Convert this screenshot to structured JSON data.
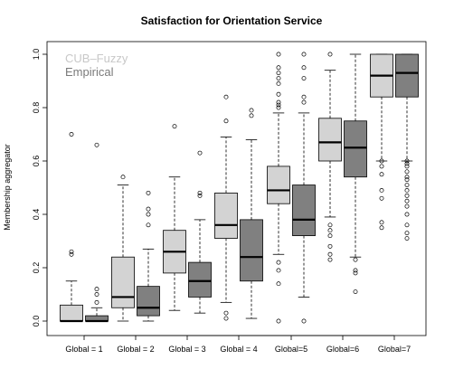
{
  "chart_data": {
    "type": "boxplot",
    "title": "Satisfaction for Orientation Service",
    "xlabel": "",
    "ylabel": "Membership aggregator",
    "ylim": [
      0,
      1
    ],
    "yticks": [
      "0.0",
      "0.2",
      "0.4",
      "0.6",
      "0.8",
      "1.0"
    ],
    "categories": [
      "Global = 1",
      "Global = 2",
      "Global = 3",
      "Global = 4",
      "Global=5",
      "Global=6",
      "Global=7"
    ],
    "legend_position": "top-left",
    "grid": false,
    "series": [
      {
        "name": "CUB–Fuzzy",
        "color": "#d3d3d3",
        "boxes": [
          {
            "whisker_low": 0.0,
            "q1": 0.0,
            "median": 0.0,
            "q3": 0.06,
            "whisker_high": 0.15,
            "outliers": [
              0.25,
              0.26,
              0.7
            ]
          },
          {
            "whisker_low": 0.0,
            "q1": 0.05,
            "median": 0.09,
            "q3": 0.24,
            "whisker_high": 0.51,
            "outliers": [
              0.54
            ]
          },
          {
            "whisker_low": 0.04,
            "q1": 0.18,
            "median": 0.26,
            "q3": 0.34,
            "whisker_high": 0.54,
            "outliers": [
              0.73
            ]
          },
          {
            "whisker_low": 0.07,
            "q1": 0.31,
            "median": 0.36,
            "q3": 0.48,
            "whisker_high": 0.69,
            "outliers": [
              0.01,
              0.03,
              0.75,
              0.84
            ]
          },
          {
            "whisker_low": 0.25,
            "q1": 0.44,
            "median": 0.49,
            "q3": 0.58,
            "whisker_high": 0.78,
            "outliers": [
              0.0,
              0.14,
              0.19,
              0.22,
              0.8,
              0.81,
              0.82,
              0.85,
              0.89,
              0.91,
              0.93,
              0.95,
              1.0
            ]
          },
          {
            "whisker_low": 0.39,
            "q1": 0.6,
            "median": 0.67,
            "q3": 0.76,
            "whisker_high": 0.94,
            "outliers": [
              0.23,
              0.25,
              0.28,
              0.32,
              0.34,
              0.36,
              1.0
            ]
          },
          {
            "whisker_low": 0.6,
            "q1": 0.84,
            "median": 0.92,
            "q3": 1.0,
            "whisker_high": 1.0,
            "outliers": [
              0.35,
              0.37,
              0.46,
              0.49,
              0.55,
              0.58,
              0.6
            ]
          }
        ]
      },
      {
        "name": "Empirical",
        "color": "#808080",
        "boxes": [
          {
            "whisker_low": 0.0,
            "q1": 0.0,
            "median": 0.0,
            "q3": 0.02,
            "whisker_high": 0.05,
            "outliers": [
              0.07,
              0.1,
              0.12,
              0.66
            ]
          },
          {
            "whisker_low": 0.0,
            "q1": 0.02,
            "median": 0.05,
            "q3": 0.13,
            "whisker_high": 0.27,
            "outliers": [
              0.36,
              0.4,
              0.42,
              0.48
            ]
          },
          {
            "whisker_low": 0.03,
            "q1": 0.09,
            "median": 0.15,
            "q3": 0.22,
            "whisker_high": 0.38,
            "outliers": [
              0.47,
              0.48,
              0.63
            ]
          },
          {
            "whisker_low": 0.01,
            "q1": 0.15,
            "median": 0.24,
            "q3": 0.38,
            "whisker_high": 0.68,
            "outliers": [
              0.77,
              0.79
            ]
          },
          {
            "whisker_low": 0.09,
            "q1": 0.32,
            "median": 0.38,
            "q3": 0.51,
            "whisker_high": 0.78,
            "outliers": [
              0.0,
              0.82,
              0.84,
              0.91,
              0.95,
              1.0
            ]
          },
          {
            "whisker_low": 0.24,
            "q1": 0.54,
            "median": 0.65,
            "q3": 0.75,
            "whisker_high": 1.0,
            "outliers": [
              0.11,
              0.18,
              0.19,
              0.23
            ]
          },
          {
            "whisker_low": 0.6,
            "q1": 0.84,
            "median": 0.93,
            "q3": 1.0,
            "whisker_high": 1.0,
            "outliers": [
              0.31,
              0.33,
              0.36,
              0.4,
              0.43,
              0.45,
              0.47,
              0.49,
              0.51,
              0.53,
              0.54,
              0.56,
              0.58,
              0.59,
              0.6
            ]
          }
        ]
      }
    ]
  }
}
